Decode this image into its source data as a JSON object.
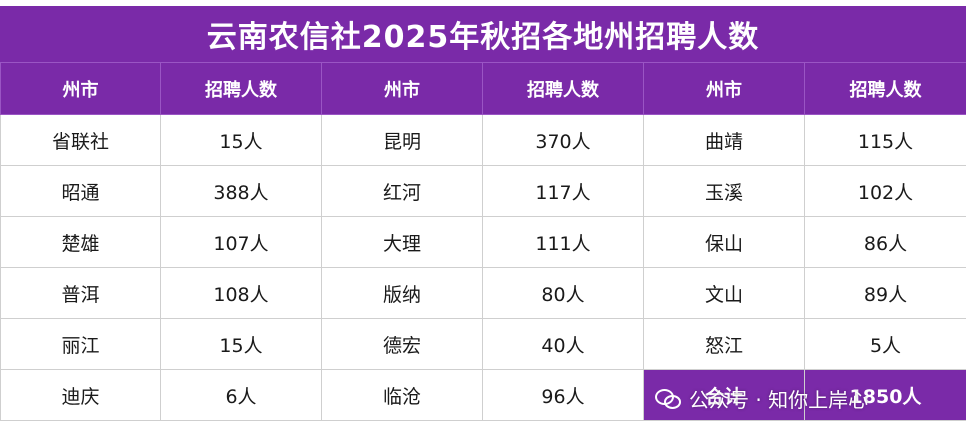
{
  "title": "云南农信社2025年秋招各地州招聘人数",
  "headers": [
    "州市",
    "招聘人数",
    "州市",
    "招聘人数",
    "州市",
    "招聘人数"
  ],
  "rows": [
    [
      {
        "name": "省联社",
        "count": "15人"
      },
      {
        "name": "昆明",
        "count": "370人"
      },
      {
        "name": "曲靖",
        "count": "115人"
      }
    ],
    [
      {
        "name": "昭通",
        "count": "388人"
      },
      {
        "name": "红河",
        "count": "117人"
      },
      {
        "name": "玉溪",
        "count": "102人"
      }
    ],
    [
      {
        "name": "楚雄",
        "count": "107人"
      },
      {
        "name": "大理",
        "count": "111人"
      },
      {
        "name": "保山",
        "count": "86人"
      }
    ],
    [
      {
        "name": "普洱",
        "count": "108人"
      },
      {
        "name": "版纳",
        "count": "80人"
      },
      {
        "name": "文山",
        "count": "89人"
      }
    ],
    [
      {
        "name": "丽江",
        "count": "15人"
      },
      {
        "name": "德宏",
        "count": "40人"
      },
      {
        "name": "怒江",
        "count": "5人"
      }
    ],
    [
      {
        "name": "迪庆",
        "count": "6人"
      },
      {
        "name": "临沧",
        "count": "96人"
      },
      {
        "name": "合计",
        "count": "1850人",
        "is_total": true
      }
    ]
  ],
  "watermark": {
    "text": "公众号 · 知你上岸心",
    "icon": "wechat-icon"
  },
  "colors": {
    "header_bg": "#7a2aa8",
    "header_text": "#ffffff",
    "border": "#cfcfcf"
  }
}
